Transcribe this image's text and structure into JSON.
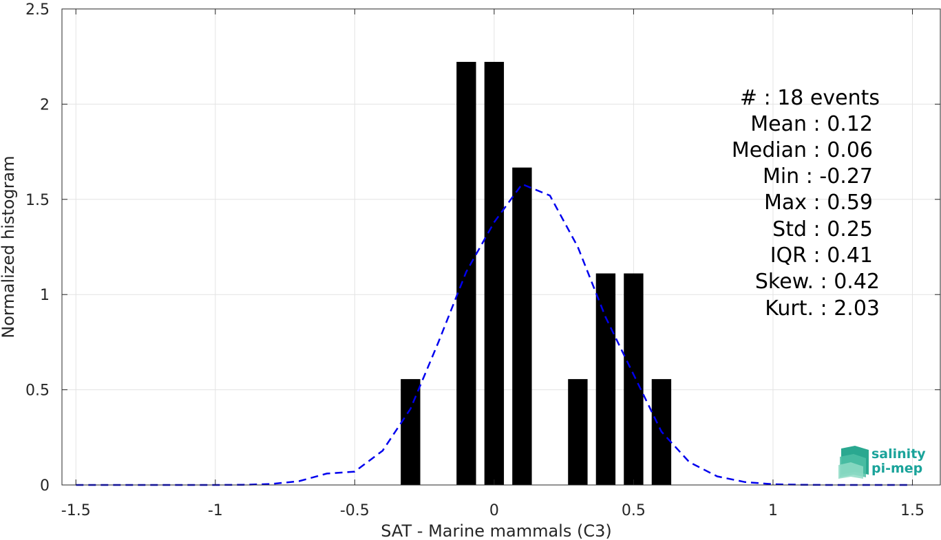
{
  "chart_data": {
    "type": "bar",
    "xlabel": "SAT - Marine mammals (C3)",
    "ylabel": "Normalized histogram",
    "xlim": [
      -1.55,
      1.6
    ],
    "ylim": [
      0,
      2.5
    ],
    "xticks": [
      -1.5,
      -1,
      -0.5,
      0,
      0.5,
      1,
      1.5
    ],
    "xtick_labels": [
      "-1.5",
      "-1",
      "-0.5",
      "0",
      "0.5",
      "1",
      "1.5"
    ],
    "yticks": [
      0,
      0.5,
      1,
      1.5,
      2,
      2.5
    ],
    "ytick_labels": [
      "0",
      "0.5",
      "1",
      "1.5",
      "2",
      "2.5"
    ],
    "grid": true,
    "bar_width": 0.07,
    "bars": {
      "x": [
        -0.3,
        -0.1,
        0.0,
        0.1,
        0.3,
        0.4,
        0.5,
        0.6
      ],
      "values": [
        0.556,
        2.222,
        2.222,
        1.667,
        0.556,
        1.111,
        1.111,
        0.556
      ],
      "color": "#000000"
    },
    "fit_curve": {
      "style": "dashed",
      "color": "#0000ee",
      "x": [
        -1.5,
        -1.4,
        -1.3,
        -1.2,
        -1.1,
        -1.0,
        -0.9,
        -0.8,
        -0.7,
        -0.6,
        -0.5,
        -0.4,
        -0.3,
        -0.2,
        -0.1,
        0.0,
        0.1,
        0.2,
        0.3,
        0.4,
        0.5,
        0.6,
        0.7,
        0.8,
        0.9,
        1.0,
        1.1,
        1.2,
        1.3,
        1.4,
        1.5
      ],
      "y": [
        0,
        0,
        0,
        0,
        0,
        0,
        0.001,
        0.005,
        0.02,
        0.06,
        0.07,
        0.18,
        0.4,
        0.75,
        1.12,
        1.38,
        1.58,
        1.52,
        1.25,
        0.88,
        0.58,
        0.28,
        0.12,
        0.045,
        0.015,
        0.004,
        0.001,
        0,
        0,
        0,
        0
      ]
    },
    "stats": {
      "count": "#  : 18 events",
      "mean": "Mean : 0.12",
      "median": "Median : 0.06",
      "min": "Min : -0.27",
      "max": "Max : 0.59",
      "std": "Std : 0.25",
      "iqr": "IQR : 0.41",
      "skew": "Skew. : 0.42",
      "kurt": "Kurt. : 2.03"
    }
  },
  "logo": {
    "line1": "salinity",
    "line2": "pi-mep",
    "color": "#1aa39a"
  }
}
